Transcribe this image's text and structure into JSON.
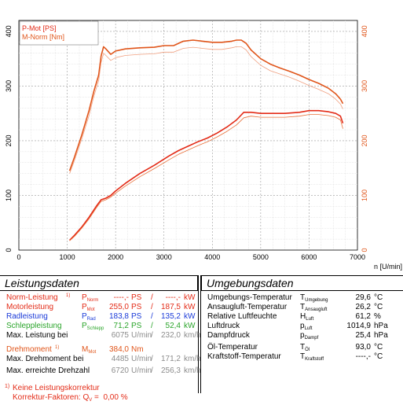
{
  "chart_data": {
    "type": "line",
    "xlabel": "n [U/min]",
    "xlim": [
      0,
      7000
    ],
    "ylim_left": [
      0,
      420
    ],
    "ylim_right": [
      0,
      420
    ],
    "x_ticks": [
      0,
      1000,
      2000,
      3000,
      4000,
      5000,
      6000,
      7000
    ],
    "y_ticks_left": [
      0,
      100,
      200,
      300,
      400
    ],
    "y_ticks_right": [
      0,
      100,
      200,
      300,
      400
    ],
    "grid": true,
    "legend_position": "top-left",
    "legend": [
      "P-Mot [PS]",
      "M-Norm [Nm]"
    ],
    "series": [
      {
        "name": "P-Mot [PS]",
        "role": "power",
        "color": "#e32b17",
        "x": [
          1050,
          1150,
          1300,
          1450,
          1600,
          1700,
          1800,
          1900,
          2000,
          2200,
          2500,
          2800,
          3100,
          3300,
          3500,
          3700,
          3900,
          4100,
          4300,
          4500,
          4650,
          4800,
          5000,
          5200,
          5500,
          5800,
          6000,
          6200,
          6400,
          6550,
          6650,
          6700
        ],
        "y": [
          18,
          27,
          42,
          60,
          80,
          92,
          95,
          100,
          108,
          122,
          140,
          155,
          172,
          182,
          190,
          198,
          205,
          214,
          225,
          238,
          252,
          252,
          250,
          250,
          250,
          252,
          255,
          255,
          253,
          250,
          245,
          232
        ]
      },
      {
        "name": "",
        "role": "power-thin",
        "color": "#e8703a",
        "x": [
          1050,
          1150,
          1300,
          1450,
          1600,
          1700,
          1800,
          1900,
          2000,
          2200,
          2500,
          2800,
          3100,
          3300,
          3500,
          3700,
          3900,
          4100,
          4300,
          4500,
          4650,
          4800,
          5000,
          5200,
          5500,
          5800,
          6000,
          6200,
          6400,
          6550,
          6650,
          6700
        ],
        "y": [
          17,
          25,
          40,
          57,
          77,
          89,
          92,
          97,
          104,
          117,
          134,
          149,
          165,
          175,
          183,
          191,
          198,
          207,
          217,
          229,
          242,
          245,
          243,
          243,
          243,
          245,
          248,
          248,
          246,
          243,
          238,
          222
        ]
      },
      {
        "name": "M-Norm [Nm]",
        "role": "torque",
        "color": "#e0551a",
        "x": [
          1050,
          1150,
          1300,
          1450,
          1550,
          1650,
          1700,
          1750,
          1800,
          1900,
          2000,
          2200,
          2500,
          2800,
          3000,
          3200,
          3400,
          3600,
          3800,
          4000,
          4200,
          4400,
          4500,
          4600,
          4700,
          4800,
          5000,
          5200,
          5400,
          5600,
          5800,
          6000,
          6200,
          6400,
          6550,
          6650,
          6700
        ],
        "y": [
          145,
          170,
          210,
          255,
          290,
          320,
          355,
          372,
          368,
          358,
          364,
          368,
          370,
          371,
          374,
          374,
          382,
          384,
          382,
          380,
          380,
          382,
          384,
          384,
          378,
          366,
          350,
          340,
          333,
          327,
          320,
          312,
          305,
          296,
          286,
          276,
          268
        ]
      },
      {
        "name": "",
        "role": "torque-thin",
        "color": "#f0a080",
        "x": [
          1050,
          1150,
          1300,
          1450,
          1550,
          1650,
          1700,
          1750,
          1800,
          1900,
          2000,
          2200,
          2500,
          2800,
          3000,
          3200,
          3400,
          3600,
          3800,
          4000,
          4200,
          4400,
          4500,
          4600,
          4700,
          4800,
          5000,
          5200,
          5400,
          5600,
          5800,
          6000,
          6200,
          6400,
          6550,
          6650,
          6700
        ],
        "y": [
          140,
          164,
          203,
          246,
          281,
          310,
          343,
          360,
          356,
          347,
          352,
          356,
          358,
          359,
          362,
          362,
          369,
          371,
          369,
          367,
          367,
          370,
          372,
          372,
          366,
          354,
          338,
          328,
          322,
          316,
          309,
          301,
          294,
          286,
          276,
          267,
          258
        ]
      }
    ]
  },
  "left_panel": {
    "title": "Leistungsdaten",
    "rows": [
      {
        "label": "Norm-Leistung ",
        "sup": "1)",
        "sym": "P",
        "sub": "Norm",
        "v1": "----,-",
        "u1": "PS",
        "sep": "/",
        "v2": "----,-",
        "u2": "kW"
      },
      {
        "label": "Motorleistung",
        "sym": "P",
        "sub": "Mot",
        "v1": "255,0",
        "u1": "PS",
        "sep": "/",
        "v2": "187,5",
        "u2": "kW"
      },
      {
        "label": "Radleistung",
        "sym": "P",
        "sub": "Rad",
        "v1": "183,8",
        "u1": "PS",
        "sep": "/",
        "v2": "135,2",
        "u2": "kW"
      },
      {
        "label": "Schleppleistung",
        "sym": "P",
        "sub": "Schlepp",
        "v1": "71,2",
        "u1": "PS",
        "sep": "/",
        "v2": "52,4",
        "u2": "kW"
      },
      {
        "label": "Max. Leistung bei",
        "v1": "6075",
        "u1": "U/min",
        "sep": "/",
        "v2": "232,0",
        "u2": "km/h"
      },
      {
        "label": "Drehmoment ",
        "sup": "1)",
        "sym": "M",
        "sub": "Mot",
        "v1": "384,0",
        "u1": "Nm"
      },
      {
        "label": "Max. Drehmoment bei",
        "v1": "4485",
        "u1": "U/min",
        "sep": "/",
        "v2": "171,2",
        "u2": "km/h"
      },
      {
        "label": "Max. erreichte Drehzahl",
        "v1": "6720",
        "u1": "U/min",
        "sep": "/",
        "v2": "256,3",
        "u2": "km/h"
      }
    ],
    "footnote_mark": "1)",
    "footnote_1": "Keine Leistungskorrektur",
    "footnote_2_prefix": "Korrektur-Faktoren: Q",
    "footnote_2_sub": "V",
    "footnote_2_suffix": " =  0,00 %"
  },
  "right_panel": {
    "title": "Umgebungsdaten",
    "rows": [
      {
        "label": "Umgebungs-Temperatur",
        "sym": "T",
        "sub": "Umgebung",
        "value": "29,6",
        "unit": "°C"
      },
      {
        "label": "Ansaugluft-Temperatur",
        "sym": "T",
        "sub": "Ansaugluft",
        "value": "26,2",
        "unit": "°C"
      },
      {
        "label": "Relative Luftfeuchte",
        "sym": "H",
        "sub": "Luft",
        "value": "61,2",
        "unit": "%"
      },
      {
        "label": "Luftdruck",
        "sym": "p",
        "sub": "Luft",
        "value": "1014,9",
        "unit": "hPa"
      },
      {
        "label": "Dampfdruck",
        "sym": "p",
        "sub": "Dampf",
        "value": "25,4",
        "unit": "hPa"
      },
      {
        "label": "Öl-Temperatur",
        "sym": "T",
        "sub": "Öl",
        "value": "93,0",
        "unit": "°C"
      },
      {
        "label": "Kraftstoff-Temperatur",
        "sym": "T",
        "sub": "Kraftstoff",
        "value": "----,-",
        "unit": "°C"
      }
    ]
  }
}
